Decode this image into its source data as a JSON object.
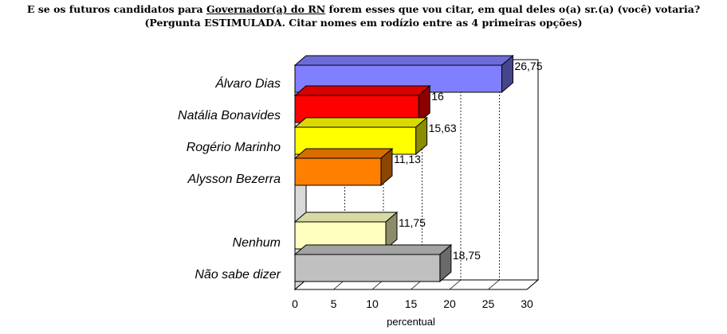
{
  "title": {
    "prefix": "E se os futuros candidatos para ",
    "underlined": "Governador(a) do RN",
    "suffix": " forem esses que vou citar, em qual deles o(a) sr.(a) (você) votaria?",
    "line2": "(Pergunta ESTIMULADA. Citar nomes em rodízio entre as 4 primeiras opções)"
  },
  "chart_data": {
    "type": "bar",
    "orientation": "horizontal",
    "style": "3d",
    "categories": [
      "Álvaro Dias",
      "Natália Bonavides",
      "Rogério Marinho",
      "Alysson Bezerra",
      "Nenhum",
      "Não sabe dizer"
    ],
    "values": [
      26.75,
      16,
      15.63,
      11.13,
      11.75,
      18.75
    ],
    "value_labels": [
      "26,75",
      "16",
      "15,63",
      "11,13",
      "11,75",
      "18,75"
    ],
    "colors": [
      "#7f7fff",
      "#ff0000",
      "#ffff00",
      "#ff8000",
      "#ffffc0",
      "#c0c0c0"
    ],
    "xlabel": "percentual",
    "xlim": [
      0,
      30
    ],
    "xticks": [
      "0",
      "5",
      "10",
      "15",
      "20",
      "25",
      "30"
    ],
    "grid": true
  }
}
